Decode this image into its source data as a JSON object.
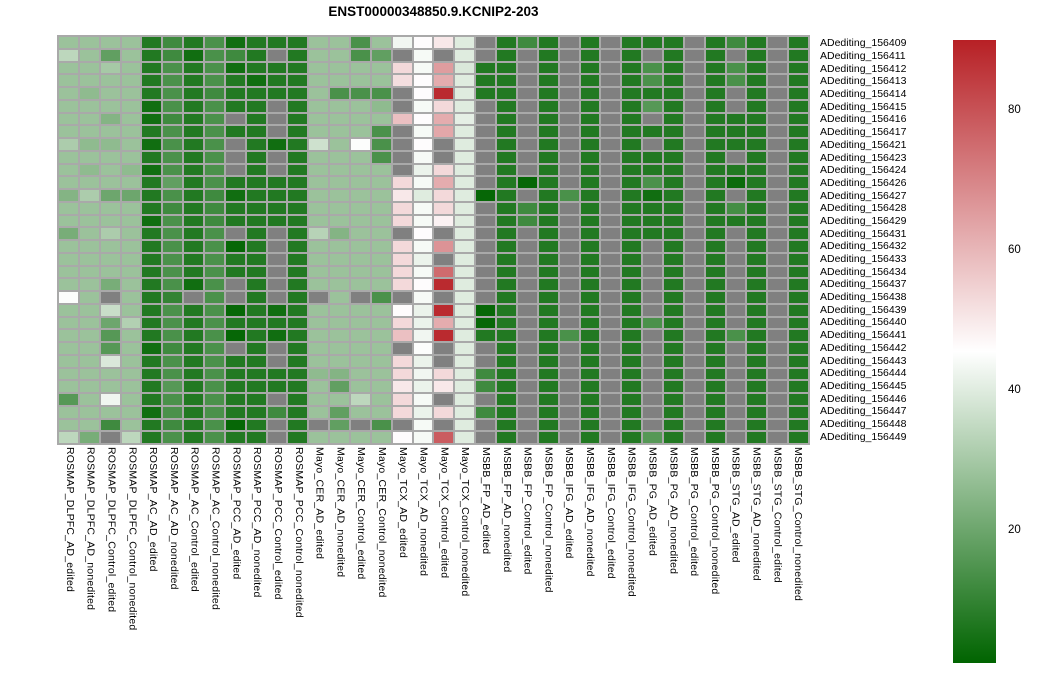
{
  "title": "ENST00000348850.9.KCNIP2-203",
  "chart_data": {
    "type": "heatmap",
    "title": "ENST00000348850.9.KCNIP2-203",
    "legend_position": "right",
    "na_color": "#808080",
    "grid_color": "#A9A9A9",
    "colormap": {
      "low": "#006400",
      "mid": "#FFFFFF",
      "high": "#B72025",
      "vmin": 1,
      "vmid": 45.5,
      "vmax": 90
    },
    "colorbar_ticks": [
      20,
      40,
      60,
      80
    ],
    "rows": [
      "ADediting_156409",
      "ADediting_156411",
      "ADediting_156412",
      "ADediting_156413",
      "ADediting_156414",
      "ADediting_156415",
      "ADediting_156416",
      "ADediting_156417",
      "ADediting_156421",
      "ADediting_156423",
      "ADediting_156424",
      "ADediting_156426",
      "ADediting_156427",
      "ADediting_156428",
      "ADediting_156429",
      "ADediting_156431",
      "ADediting_156432",
      "ADediting_156433",
      "ADediting_156434",
      "ADediting_156437",
      "ADediting_156438",
      "ADediting_156439",
      "ADediting_156440",
      "ADediting_156441",
      "ADediting_156442",
      "ADediting_156443",
      "ADediting_156444",
      "ADediting_156445",
      "ADediting_156446",
      "ADediting_156447",
      "ADediting_156448",
      "ADediting_156449"
    ],
    "columns": [
      "ROSMAP_DLPFC_AD_edited",
      "ROSMAP_DLPFC_AD_nonedited",
      "ROSMAP_DLPFC_Control_edited",
      "ROSMAP_DLPFC_Control_nonedited",
      "ROSMAP_AC_AD_edited",
      "ROSMAP_AC_AD_nonedited",
      "ROSMAP_AC_Control_edited",
      "ROSMAP_AC_Control_nonedited",
      "ROSMAP_PCC_AD_edited",
      "ROSMAP_PCC_AD_nonedited",
      "ROSMAP_PCC_Control_edited",
      "ROSMAP_PCC_Control_nonedited",
      "Mayo_CER_AD_edited",
      "Mayo_CER_AD_nonedited",
      "Mayo_CER_Control_edited",
      "Mayo_CER_Control_nonedited",
      "Mayo_TCX_AD_edited",
      "Mayo_TCX_AD_nonedited",
      "Mayo_TCX_Control_edited",
      "Mayo_TCX_Control_nonedited",
      "MSBB_FP_AD_edited",
      "MSBB_FP_AD_nonedited",
      "MSBB_FP_Control_edited",
      "MSBB_FP_Control_nonedited",
      "MSBB_IFG_AD_edited",
      "MSBB_IFG_AD_nonedited",
      "MSBB_IFG_Control_edited",
      "MSBB_IFG_Control_nonedited",
      "MSBB_PG_AD_edited",
      "MSBB_PG_AD_nonedited",
      "MSBB_PG_Control_edited",
      "MSBB_PG_Control_nonedited",
      "MSBB_STG_AD_edited",
      "MSBB_STG_AD_nonedited",
      "MSBB_STG_Control_edited",
      "MSBB_STG_Control_nonedited"
    ],
    "values": [
      [
        28,
        28,
        28,
        28,
        7,
        12,
        7,
        14,
        4,
        7,
        7,
        7,
        28,
        28,
        14,
        28,
        43,
        46,
        50,
        40,
        null,
        7,
        12,
        7,
        null,
        7,
        null,
        7,
        7,
        7,
        null,
        7,
        12,
        7,
        null,
        7
      ],
      [
        34,
        28,
        18,
        28,
        7,
        12,
        4,
        14,
        12,
        7,
        null,
        7,
        28,
        28,
        14,
        18,
        null,
        44,
        null,
        40,
        null,
        7,
        null,
        7,
        null,
        7,
        null,
        7,
        null,
        7,
        null,
        7,
        null,
        7,
        null,
        7
      ],
      [
        28,
        28,
        30,
        28,
        7,
        14,
        7,
        14,
        4,
        7,
        7,
        7,
        28,
        28,
        28,
        28,
        53,
        44,
        65,
        39,
        7,
        7,
        null,
        7,
        null,
        7,
        null,
        7,
        14,
        7,
        null,
        7,
        14,
        7,
        null,
        7
      ],
      [
        28,
        28,
        28,
        28,
        7,
        14,
        7,
        14,
        7,
        4,
        7,
        7,
        28,
        28,
        28,
        28,
        52,
        46,
        62,
        40,
        7,
        7,
        null,
        7,
        null,
        7,
        null,
        7,
        14,
        7,
        null,
        7,
        14,
        7,
        null,
        7
      ],
      [
        28,
        26,
        28,
        28,
        7,
        14,
        7,
        12,
        7,
        7,
        7,
        7,
        28,
        14,
        14,
        14,
        null,
        46,
        88,
        40,
        7,
        7,
        null,
        7,
        null,
        7,
        null,
        7,
        7,
        7,
        null,
        7,
        null,
        7,
        null,
        7
      ],
      [
        28,
        28,
        28,
        28,
        4,
        14,
        7,
        14,
        7,
        7,
        null,
        7,
        28,
        28,
        28,
        26,
        null,
        44,
        53,
        40,
        null,
        7,
        null,
        7,
        null,
        7,
        null,
        7,
        16,
        7,
        null,
        7,
        null,
        7,
        null,
        7
      ],
      [
        28,
        28,
        24,
        28,
        4,
        12,
        7,
        14,
        null,
        7,
        null,
        7,
        28,
        28,
        28,
        28,
        58,
        46,
        62,
        41,
        null,
        7,
        null,
        7,
        null,
        7,
        null,
        7,
        null,
        7,
        null,
        7,
        7,
        7,
        null,
        7
      ],
      [
        28,
        28,
        28,
        28,
        7,
        14,
        7,
        14,
        7,
        7,
        null,
        7,
        28,
        28,
        28,
        14,
        null,
        44,
        63,
        40,
        null,
        7,
        null,
        7,
        null,
        7,
        null,
        7,
        7,
        7,
        null,
        7,
        7,
        7,
        null,
        7
      ],
      [
        31,
        26,
        26,
        28,
        4,
        14,
        7,
        14,
        null,
        7,
        4,
        7,
        37,
        28,
        45,
        14,
        null,
        46,
        null,
        40,
        null,
        7,
        null,
        7,
        null,
        7,
        null,
        7,
        null,
        7,
        null,
        7,
        7,
        7,
        null,
        7
      ],
      [
        28,
        28,
        28,
        28,
        7,
        14,
        7,
        14,
        null,
        7,
        null,
        7,
        28,
        28,
        28,
        14,
        null,
        44,
        null,
        40,
        null,
        7,
        null,
        7,
        null,
        7,
        null,
        7,
        7,
        7,
        null,
        7,
        null,
        7,
        null,
        7
      ],
      [
        28,
        26,
        28,
        26,
        4,
        14,
        7,
        14,
        null,
        7,
        null,
        7,
        28,
        28,
        28,
        28,
        null,
        42,
        53,
        40,
        null,
        7,
        null,
        7,
        null,
        7,
        null,
        7,
        7,
        7,
        null,
        7,
        7,
        7,
        null,
        7
      ],
      [
        28,
        28,
        28,
        28,
        7,
        18,
        7,
        14,
        7,
        7,
        7,
        7,
        28,
        28,
        28,
        28,
        53,
        44,
        62,
        40,
        null,
        7,
        2,
        7,
        null,
        7,
        null,
        7,
        14,
        7,
        null,
        7,
        3,
        7,
        null,
        7
      ],
      [
        24,
        31,
        20,
        20,
        7,
        14,
        7,
        12,
        4,
        7,
        7,
        7,
        28,
        28,
        28,
        28,
        50,
        40,
        53,
        40,
        2,
        7,
        null,
        7,
        14,
        7,
        null,
        7,
        4,
        7,
        null,
        7,
        null,
        7,
        null,
        7
      ],
      [
        28,
        28,
        28,
        28,
        7,
        12,
        7,
        12,
        7,
        7,
        7,
        7,
        28,
        28,
        28,
        28,
        53,
        44,
        53,
        40,
        null,
        7,
        12,
        7,
        null,
        7,
        null,
        7,
        7,
        7,
        null,
        7,
        13,
        7,
        null,
        7
      ],
      [
        28,
        28,
        28,
        28,
        4,
        14,
        7,
        12,
        7,
        7,
        7,
        7,
        28,
        28,
        28,
        28,
        53,
        44,
        48,
        40,
        null,
        7,
        12,
        7,
        null,
        7,
        null,
        7,
        7,
        7,
        null,
        7,
        7,
        7,
        null,
        7
      ],
      [
        22,
        28,
        31,
        28,
        7,
        14,
        7,
        14,
        null,
        7,
        null,
        7,
        33,
        24,
        28,
        28,
        null,
        46,
        null,
        40,
        null,
        7,
        null,
        7,
        null,
        7,
        null,
        7,
        7,
        7,
        null,
        7,
        null,
        7,
        null,
        7
      ],
      [
        28,
        28,
        28,
        28,
        7,
        14,
        7,
        14,
        2,
        7,
        null,
        7,
        28,
        28,
        28,
        28,
        53,
        44,
        67,
        40,
        null,
        7,
        null,
        7,
        null,
        7,
        null,
        7,
        null,
        7,
        null,
        7,
        null,
        7,
        null,
        7
      ],
      [
        28,
        28,
        28,
        28,
        7,
        14,
        7,
        14,
        7,
        7,
        null,
        7,
        28,
        28,
        28,
        28,
        53,
        42,
        null,
        40,
        null,
        7,
        null,
        7,
        null,
        7,
        null,
        7,
        null,
        7,
        null,
        7,
        null,
        7,
        null,
        7
      ],
      [
        28,
        28,
        28,
        28,
        7,
        14,
        7,
        14,
        7,
        7,
        null,
        7,
        28,
        28,
        28,
        28,
        53,
        44,
        75,
        40,
        null,
        7,
        null,
        7,
        null,
        7,
        null,
        7,
        null,
        7,
        null,
        7,
        null,
        7,
        null,
        7
      ],
      [
        28,
        28,
        22,
        28,
        7,
        14,
        4,
        14,
        null,
        7,
        null,
        7,
        28,
        28,
        28,
        28,
        53,
        46,
        88,
        40,
        null,
        7,
        null,
        7,
        null,
        7,
        null,
        7,
        null,
        7,
        null,
        7,
        null,
        7,
        null,
        7
      ],
      [
        45,
        28,
        null,
        28,
        7,
        10,
        null,
        14,
        null,
        7,
        null,
        7,
        null,
        28,
        null,
        14,
        null,
        44,
        null,
        40,
        null,
        7,
        null,
        7,
        null,
        7,
        null,
        7,
        null,
        7,
        null,
        7,
        null,
        7,
        null,
        7
      ],
      [
        28,
        28,
        36,
        28,
        7,
        14,
        7,
        14,
        2,
        7,
        4,
        7,
        28,
        28,
        28,
        28,
        46,
        42,
        88,
        40,
        2,
        7,
        null,
        7,
        null,
        7,
        null,
        7,
        null,
        7,
        null,
        7,
        null,
        7,
        null,
        7
      ],
      [
        28,
        28,
        20,
        32,
        7,
        14,
        7,
        14,
        7,
        7,
        7,
        7,
        28,
        28,
        28,
        28,
        53,
        42,
        62,
        40,
        2,
        7,
        null,
        7,
        null,
        7,
        null,
        7,
        14,
        7,
        null,
        7,
        null,
        7,
        null,
        7
      ],
      [
        28,
        28,
        16,
        28,
        7,
        14,
        7,
        14,
        2,
        7,
        4,
        7,
        28,
        28,
        28,
        28,
        58,
        43,
        88,
        40,
        7,
        7,
        null,
        7,
        14,
        7,
        null,
        7,
        null,
        7,
        null,
        7,
        14,
        7,
        null,
        7
      ],
      [
        28,
        28,
        16,
        28,
        4,
        12,
        7,
        14,
        null,
        7,
        null,
        7,
        28,
        28,
        28,
        28,
        null,
        45,
        null,
        40,
        null,
        7,
        null,
        7,
        null,
        7,
        null,
        7,
        null,
        7,
        null,
        7,
        null,
        7,
        null,
        7
      ],
      [
        28,
        28,
        39,
        28,
        7,
        14,
        7,
        14,
        7,
        7,
        null,
        7,
        28,
        28,
        28,
        28,
        53,
        42,
        null,
        40,
        null,
        7,
        null,
        7,
        null,
        7,
        null,
        7,
        null,
        7,
        null,
        7,
        null,
        7,
        null,
        7
      ],
      [
        28,
        28,
        28,
        28,
        7,
        14,
        7,
        14,
        7,
        7,
        7,
        7,
        26,
        24,
        28,
        28,
        53,
        43,
        53,
        40,
        12,
        7,
        null,
        7,
        null,
        7,
        null,
        7,
        null,
        7,
        null,
        7,
        null,
        7,
        null,
        7
      ],
      [
        28,
        28,
        28,
        28,
        7,
        16,
        7,
        14,
        7,
        7,
        7,
        7,
        28,
        18,
        28,
        28,
        50,
        42,
        50,
        40,
        12,
        7,
        null,
        7,
        null,
        7,
        null,
        7,
        null,
        7,
        null,
        7,
        null,
        7,
        null,
        7
      ],
      [
        16,
        28,
        43,
        28,
        7,
        14,
        7,
        14,
        7,
        7,
        null,
        7,
        28,
        28,
        34,
        28,
        53,
        44,
        null,
        40,
        null,
        7,
        null,
        7,
        null,
        7,
        null,
        7,
        null,
        7,
        null,
        7,
        null,
        7,
        null,
        7
      ],
      [
        28,
        28,
        28,
        28,
        4,
        14,
        7,
        14,
        7,
        7,
        12,
        7,
        28,
        18,
        28,
        28,
        53,
        42,
        53,
        40,
        12,
        7,
        null,
        7,
        null,
        7,
        null,
        7,
        null,
        7,
        null,
        7,
        null,
        7,
        null,
        7
      ],
      [
        28,
        28,
        12,
        28,
        7,
        12,
        7,
        14,
        2,
        7,
        null,
        7,
        null,
        18,
        null,
        14,
        null,
        44,
        null,
        40,
        null,
        7,
        null,
        7,
        null,
        7,
        null,
        7,
        null,
        7,
        null,
        7,
        null,
        7,
        null,
        7
      ],
      [
        34,
        22,
        null,
        34,
        7,
        14,
        7,
        14,
        7,
        7,
        null,
        7,
        28,
        28,
        28,
        28,
        46,
        44,
        78,
        40,
        null,
        7,
        null,
        7,
        null,
        7,
        null,
        7,
        16,
        7,
        null,
        7,
        null,
        7,
        null,
        7
      ]
    ]
  }
}
